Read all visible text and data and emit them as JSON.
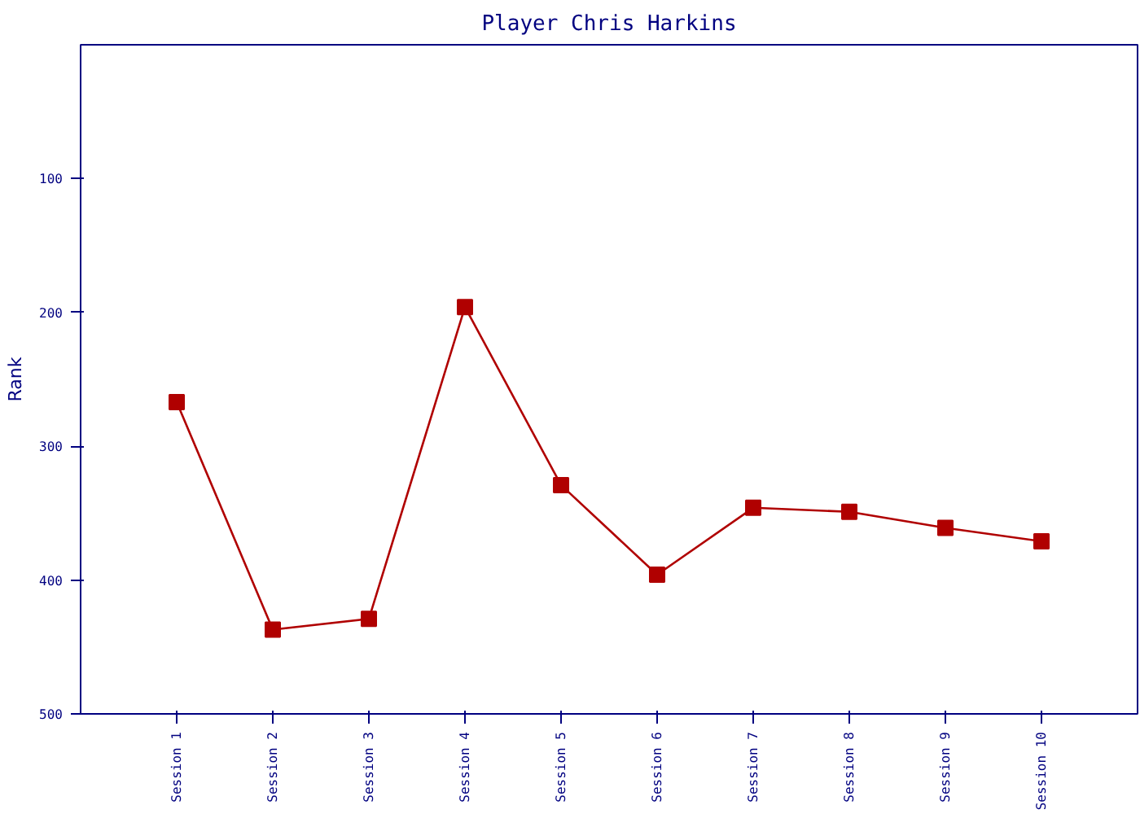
{
  "chart_data": {
    "type": "line",
    "title": "Player Chris Harkins",
    "ylabel": "Rank",
    "categories": [
      "Session 1",
      "Session 2",
      "Session 3",
      "Session 4",
      "Session 5",
      "Session 6",
      "Session 7",
      "Session 8",
      "Session 9",
      "Session 10"
    ],
    "series": [
      {
        "color": "#b00000",
        "values": [
          267,
          437,
          429,
          196,
          329,
          396,
          346,
          349,
          361,
          371
        ]
      }
    ],
    "ylim": [
      500,
      0
    ],
    "yticks": [
      100,
      200,
      300,
      400,
      500
    ],
    "grid": false,
    "marker": "square",
    "line_style": "solid"
  }
}
